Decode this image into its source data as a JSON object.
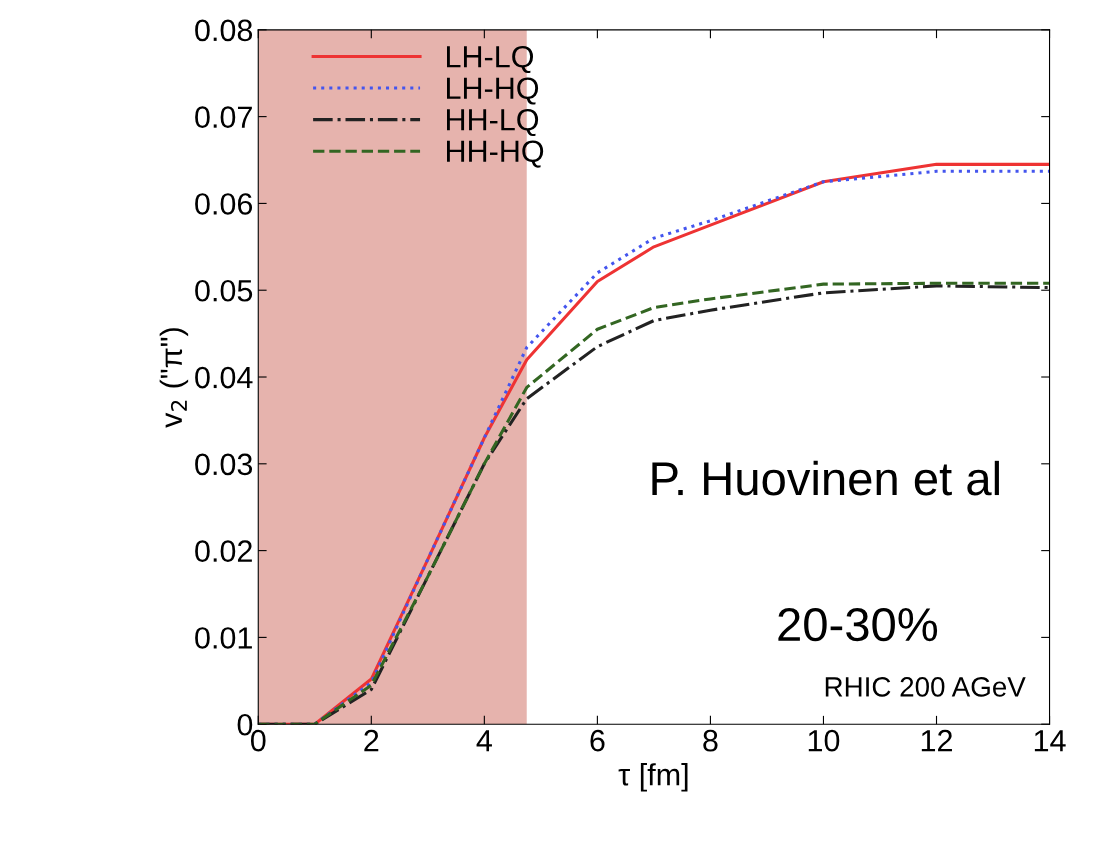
{
  "chart_data": {
    "type": "line",
    "xlabel": "τ [fm]",
    "ylabel": "v$_{2}$ (\"π\")",
    "x": [
      0,
      1,
      2,
      3,
      4,
      4.75,
      6,
      7,
      8,
      10,
      12,
      14
    ],
    "series": [
      {
        "name": "LH-LQ",
        "color": "#ee3333",
        "line_style": "solid",
        "values": [
          0,
          0,
          0.0052,
          0.019,
          0.033,
          0.042,
          0.051,
          0.055,
          0.0575,
          0.0625,
          0.0645,
          0.0645
        ]
      },
      {
        "name": "LH-HQ",
        "color": "#4455ee",
        "line_style": "dotted",
        "values": [
          0,
          0,
          0.0048,
          0.019,
          0.033,
          0.0434,
          0.052,
          0.056,
          0.058,
          0.0625,
          0.0637,
          0.0637
        ]
      },
      {
        "name": "HH-LQ",
        "color": "#222222",
        "line_style": "dashdot",
        "values": [
          0,
          0,
          0.004,
          0.017,
          0.03,
          0.0375,
          0.0435,
          0.0465,
          0.0477,
          0.0497,
          0.0505,
          0.0503
        ]
      },
      {
        "name": "HH-HQ",
        "color": "#336622",
        "line_style": "dashed",
        "values": [
          0,
          0,
          0.0045,
          0.017,
          0.03,
          0.0388,
          0.0455,
          0.048,
          0.049,
          0.0507,
          0.0508,
          0.0508
        ]
      }
    ],
    "xlim": [
      0,
      14
    ],
    "xticks": [
      0,
      2,
      4,
      6,
      8,
      10,
      12,
      14
    ],
    "ylim": [
      0,
      0.08
    ],
    "yticks": [
      {
        "value": 0,
        "label": "0"
      },
      0.01,
      0.02,
      0.03,
      0.04,
      0.05,
      0.06,
      0.07,
      0.08
    ],
    "bands": [
      {
        "axis": "x",
        "from": 0,
        "to": 4.75,
        "color": "#e6b3ad"
      }
    ],
    "annotations": [
      {
        "text": "P. Huovinen et al"
      },
      {
        "text": "20-30%"
      },
      {
        "text": "RHIC 200 AGeV"
      }
    ],
    "legend": "top left",
    "grid": false
  }
}
